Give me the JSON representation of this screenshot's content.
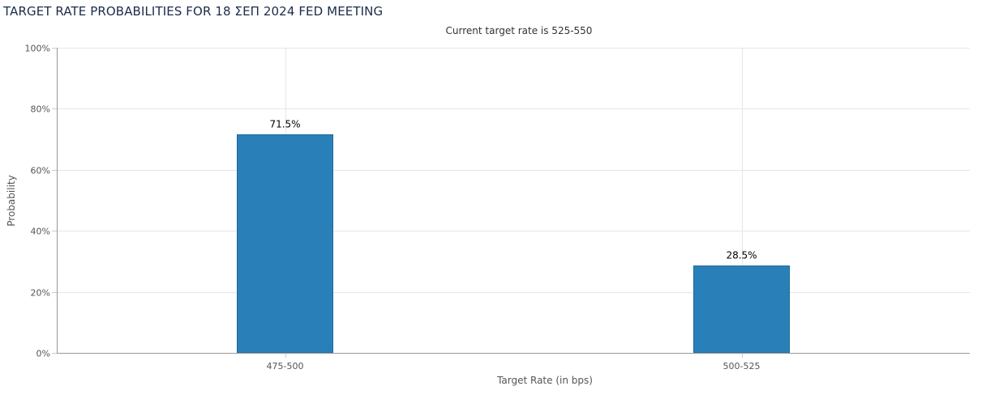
{
  "page": {
    "title": "TARGET RATE PROBABILITIES FOR 18 ΣΕΠ 2024 FED MEETING"
  },
  "chart_data": {
    "type": "bar",
    "title": "",
    "subtitle": "Current target rate is 525-550",
    "xlabel": "Target Rate (in bps)",
    "ylabel": "Probability",
    "categories": [
      "475-500",
      "500-525"
    ],
    "values": [
      71.5,
      28.5
    ],
    "data_labels": [
      "71.5%",
      "28.5%"
    ],
    "ylim": [
      0,
      100
    ],
    "yticks": [
      0,
      20,
      40,
      60,
      80,
      100
    ],
    "ytick_labels": [
      "0%",
      "20%",
      "40%",
      "60%",
      "80%",
      "100%"
    ],
    "grid": true,
    "legend": "none",
    "colors": {
      "bar": "#2980b9",
      "bar_border": "#1f6a9a",
      "grid": "#e6e6e6",
      "axis": "#999999"
    }
  }
}
